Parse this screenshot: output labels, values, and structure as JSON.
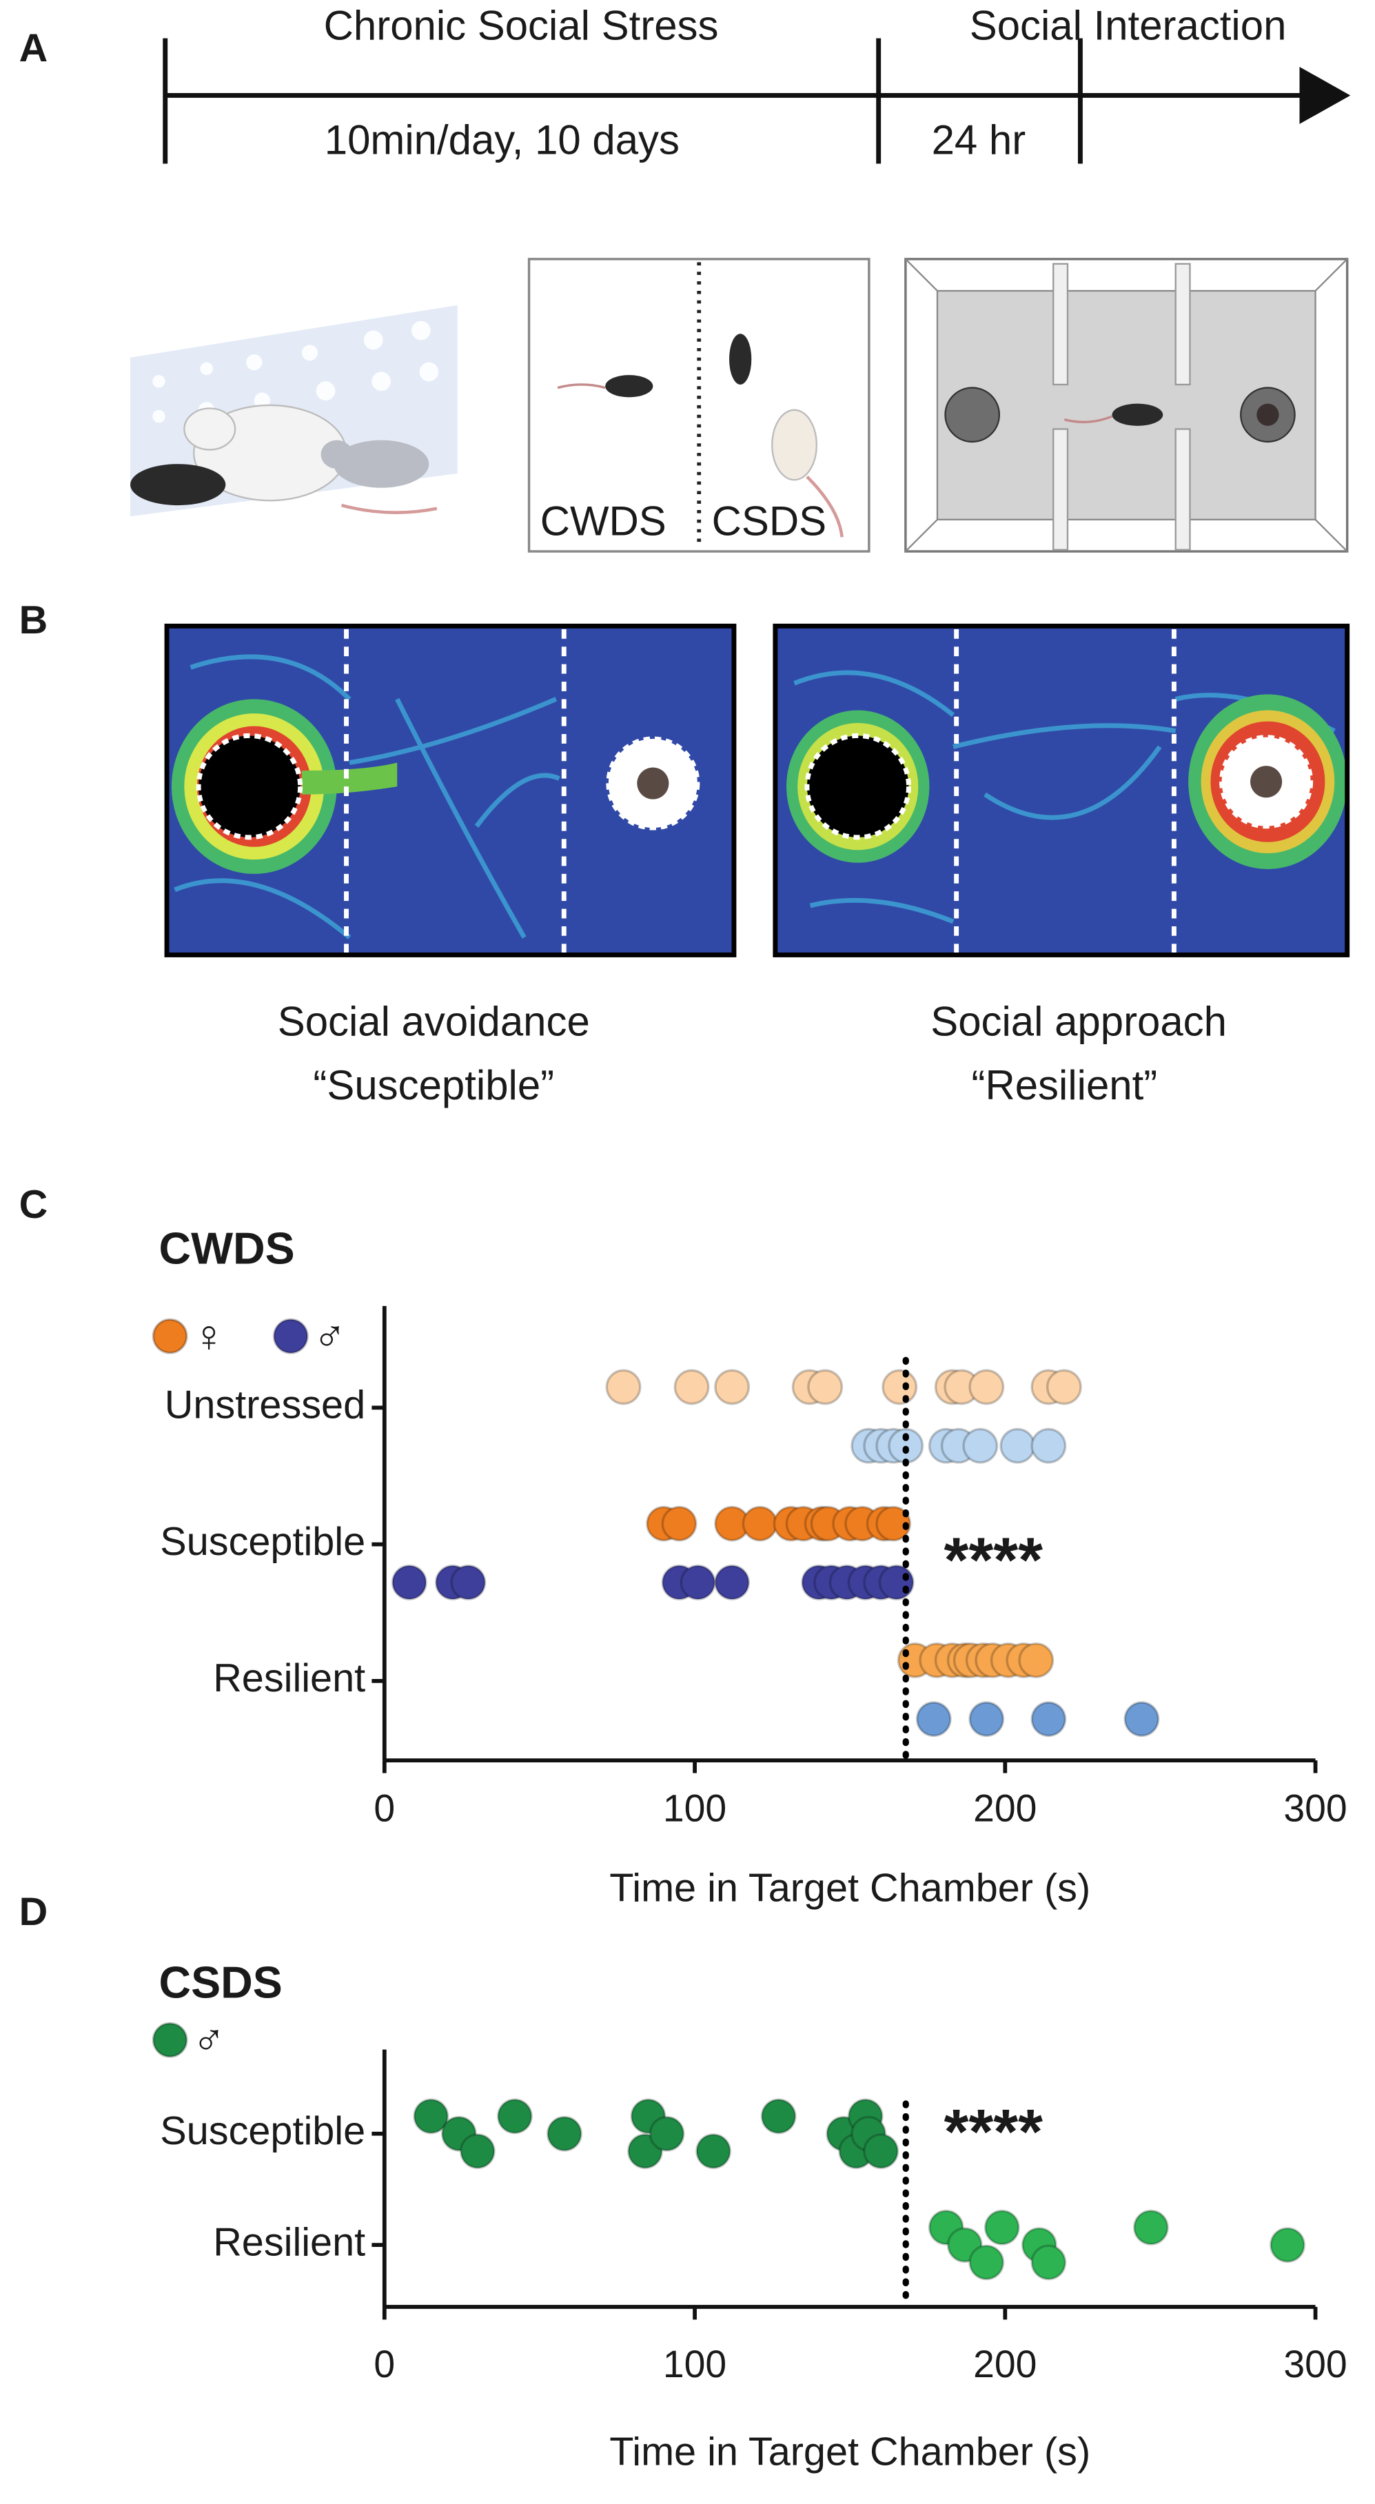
{
  "panels": {
    "A": {
      "label": "A",
      "phase1": "Chronic Social Stress",
      "phase2": "Social Interaction",
      "duration1": "10min/day, 10 days",
      "duration2": "24 hr",
      "group1": "CWDS",
      "group2": "CSDS"
    },
    "B": {
      "label": "B",
      "left_line1": "Social avoidance",
      "left_line2": "“Susceptible”",
      "right_line1": "Social approach",
      "right_line2": "“Resilient”"
    }
  },
  "chart_data": [
    {
      "type": "scatter",
      "panel": "C",
      "title": "CWDS",
      "categories": [
        "Unstressed",
        "Susceptible",
        "Resilient"
      ],
      "series": [
        {
          "name": "♀",
          "color": "#ee7d1f",
          "colors": [
            "#fcd3a8",
            "#ee7d1f",
            "#f7a64d"
          ],
          "values": [
            [
              77,
              99,
              112,
              137,
              142,
              166,
              183,
              186,
              194,
              214,
              219
            ],
            [
              90,
              95,
              112,
              121,
              131,
              135,
              141,
              143,
              150,
              154,
              161,
              164
            ],
            [
              171,
              178,
              183,
              187,
              189,
              193,
              196,
              201,
              206,
              210
            ]
          ]
        },
        {
          "name": "♂",
          "color": "#3d3f9b",
          "colors": [
            "#b9d5ef",
            "#3d3f9b",
            "#6b9ad4"
          ],
          "values": [
            [
              156,
              160,
              164,
              168,
              181,
              185,
              192,
              204,
              214
            ],
            [
              8,
              22,
              27,
              95,
              101,
              112,
              140,
              144,
              149,
              155,
              160,
              165
            ],
            [
              177,
              194,
              214,
              244
            ]
          ]
        }
      ],
      "threshold": {
        "value": 168,
        "label": "****"
      },
      "xlim": [
        0,
        300
      ],
      "xticks": [
        0,
        100,
        200,
        300
      ],
      "xlabel": "Time in Target Chamber (s)"
    },
    {
      "type": "scatter",
      "panel": "D",
      "title": "CSDS",
      "categories": [
        "Susceptible",
        "Resilient"
      ],
      "series": [
        {
          "name": "♂",
          "color": "#1e8b45",
          "colors": [
            "#1e8b45",
            "#2db352"
          ],
          "values": [
            [
              15,
              24,
              30,
              42,
              58,
              84,
              85,
              91,
              106,
              127,
              148,
              152,
              155,
              156,
              160
            ],
            [
              181,
              187,
              194,
              199,
              211,
              214,
              247,
              291
            ]
          ]
        }
      ],
      "threshold": {
        "value": 168,
        "label": "****"
      },
      "xlim": [
        0,
        300
      ],
      "xticks": [
        0,
        100,
        200,
        300
      ],
      "xlabel": "Time in Target Chamber (s)"
    }
  ]
}
